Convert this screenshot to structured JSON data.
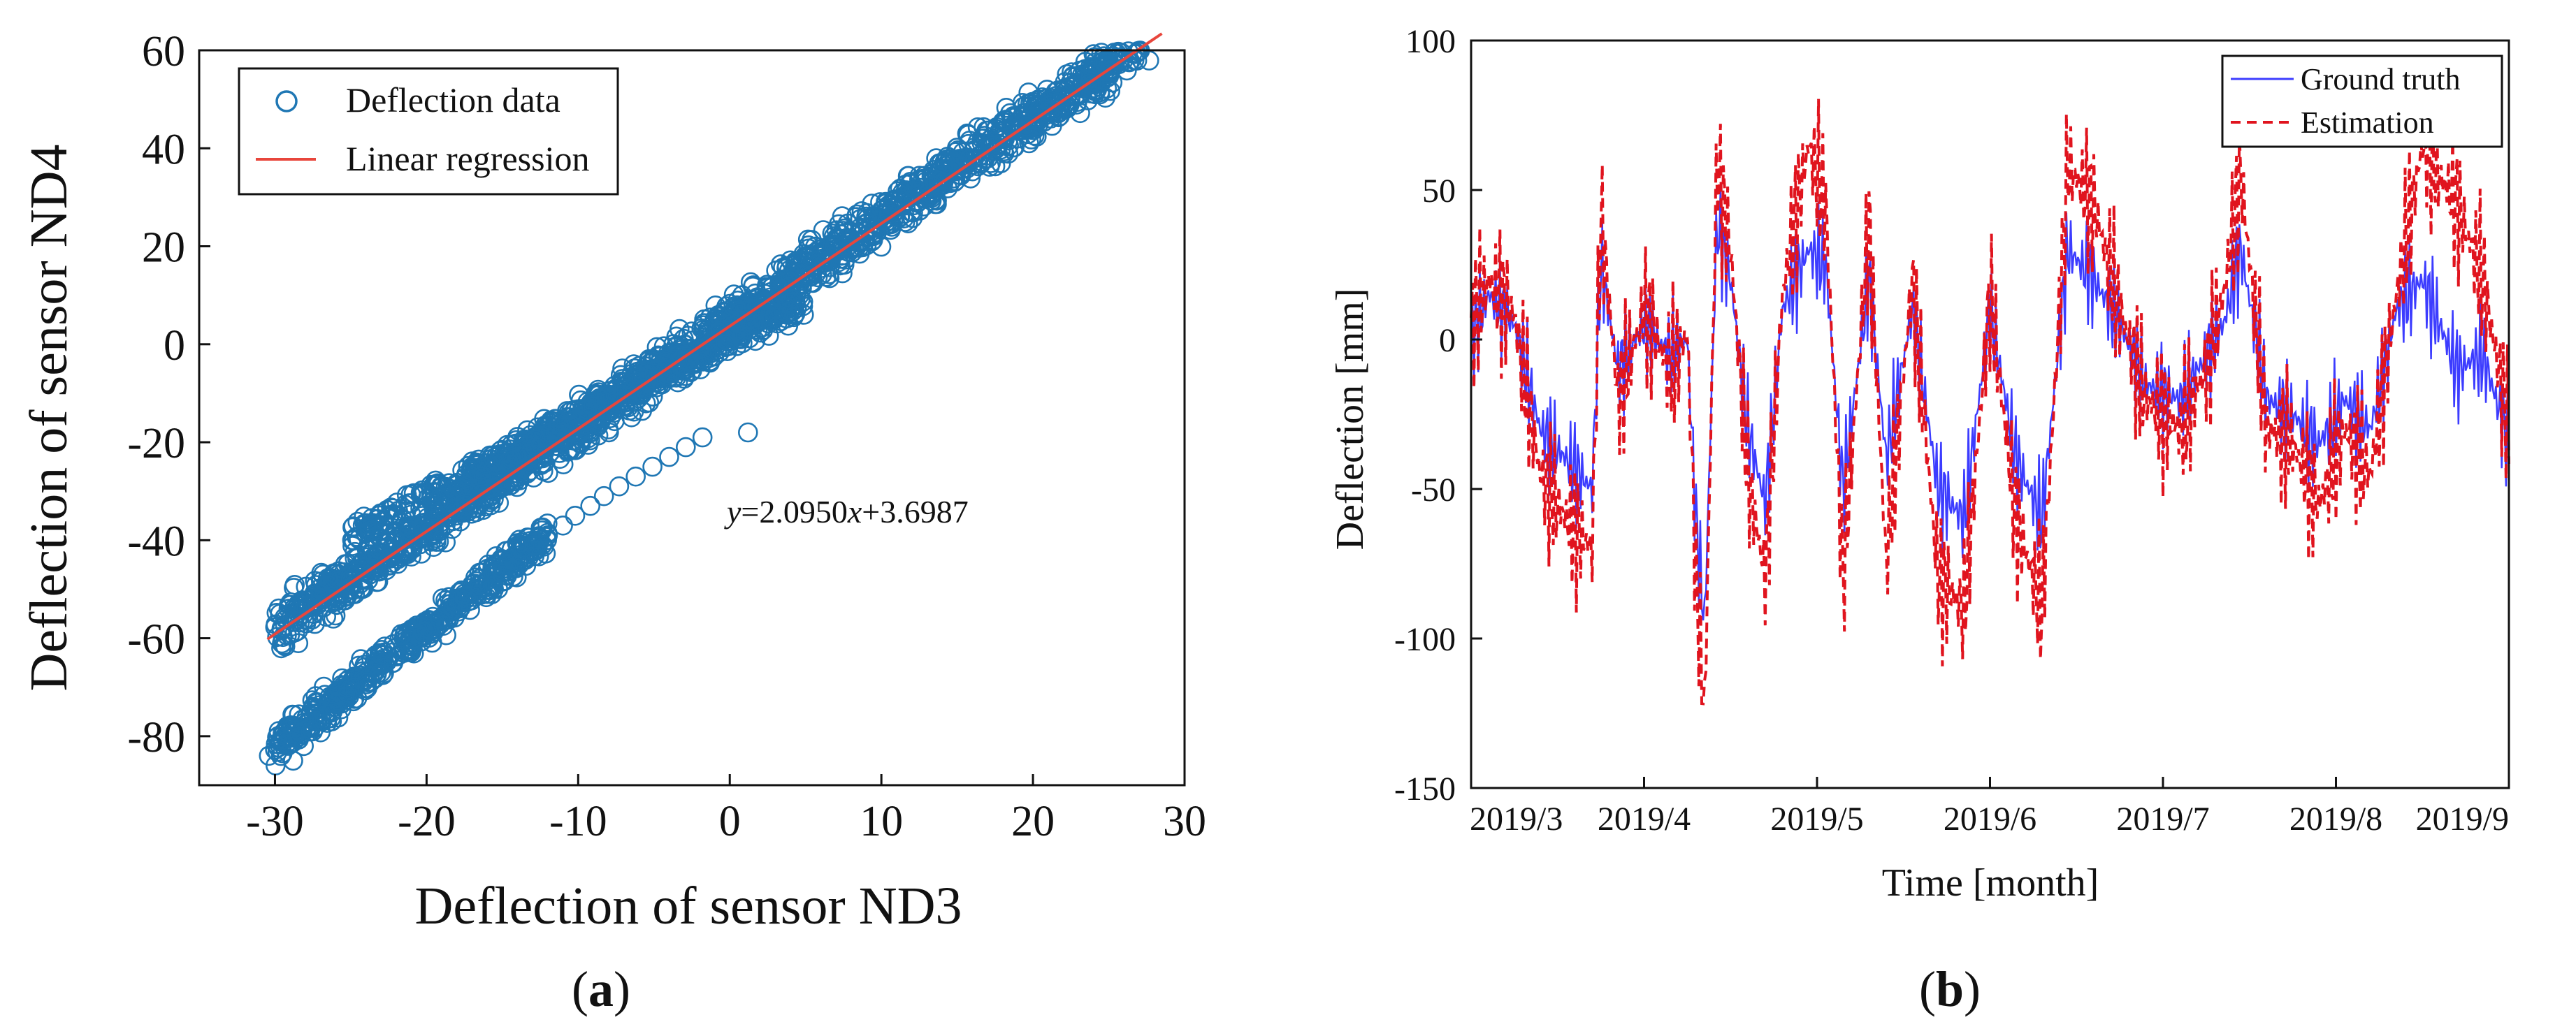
{
  "chart_data": [
    {
      "type": "scatter",
      "panel_label": "a",
      "xlabel": "Deflection of sensor ND3",
      "ylabel": "Deflection of sensor ND4",
      "xlim": [
        -35,
        30
      ],
      "ylim": [
        -90,
        60
      ],
      "xticks": [
        -30,
        -20,
        -10,
        0,
        10,
        20,
        30
      ],
      "yticks": [
        -80,
        -60,
        -40,
        -20,
        0,
        20,
        40,
        60
      ],
      "xtick_labels": [
        "-30",
        "-20",
        "-10",
        "0",
        "10",
        "20",
        "30"
      ],
      "ytick_labels": [
        "-80",
        "-60",
        "-40",
        "-20",
        "0",
        "20",
        "40",
        "60"
      ],
      "grid": false,
      "legend_position": "top-left",
      "legend": {
        "scatter": "Deflection data",
        "line": "Linear regression"
      },
      "colors": {
        "scatter": "#1f77b4",
        "line": "#e8463c"
      },
      "equation_text": "=2.0950",
      "equation_y": "y",
      "equation_x": "x",
      "equation_tail": "+3.6987",
      "regression": {
        "slope": 2.095,
        "intercept": 3.6987,
        "x_range": [
          -30.5,
          28.5
        ]
      },
      "point_clusters": [
        {
          "name": "main band",
          "x_range": [
            -30,
            28.5
          ],
          "slope": 2.095,
          "intercept": 4.5,
          "spread": 7
        },
        {
          "name": "lower branch",
          "x_range": [
            -30,
            -12
          ],
          "slope": 2.4,
          "intercept": -10,
          "spread": 5
        },
        {
          "name": "upper branch",
          "x_range": [
            -25,
            5
          ],
          "slope": 1.6,
          "intercept": 1,
          "spread": 4
        }
      ],
      "series_points": [
        [
          -30.4,
          -84
        ],
        [
          -29.8,
          -80
        ],
        [
          -29.2,
          -78
        ],
        [
          -28.8,
          -85
        ],
        [
          -28.1,
          -82
        ],
        [
          -27.5,
          -79
        ],
        [
          -26.9,
          -77
        ],
        [
          -26.2,
          -75
        ],
        [
          -25.4,
          -72
        ],
        [
          -24.7,
          -70
        ],
        [
          -23.9,
          -69
        ],
        [
          -23.0,
          -67
        ],
        [
          -22.2,
          -65
        ],
        [
          -21.5,
          -63
        ],
        [
          -20.8,
          -60
        ],
        [
          -20.0,
          -58
        ],
        [
          -19.1,
          -56
        ],
        [
          -18.2,
          -54
        ],
        [
          -17.4,
          -52
        ],
        [
          -16.5,
          -49
        ],
        [
          -15.6,
          -47
        ],
        [
          -14.7,
          -45
        ],
        [
          -13.8,
          -43
        ],
        [
          -12.9,
          -41
        ],
        [
          -12.0,
          -39
        ],
        [
          -11.0,
          -37
        ],
        [
          -10.2,
          -35
        ],
        [
          -9.2,
          -33
        ],
        [
          -8.3,
          -31
        ],
        [
          -7.3,
          -29
        ],
        [
          -6.2,
          -27
        ],
        [
          -5.1,
          -25
        ],
        [
          -4.0,
          -23
        ],
        [
          -2.9,
          -21
        ],
        [
          -1.8,
          -19
        ],
        [
          1.2,
          -18
        ],
        [
          -24.7,
          -47
        ],
        [
          -25.0,
          -48
        ],
        [
          -23.2,
          -44
        ],
        [
          -22.0,
          -40
        ],
        [
          -21.1,
          -38
        ],
        [
          -19.5,
          -34
        ],
        [
          -18.0,
          -30
        ],
        [
          -16.4,
          -27
        ],
        [
          -14.6,
          -24
        ],
        [
          -12.8,
          -21
        ],
        [
          -11.1,
          -18
        ],
        [
          -9.3,
          -15
        ],
        [
          -7.4,
          -12
        ],
        [
          -5.6,
          -9
        ],
        [
          -3.9,
          -6
        ],
        [
          -2.1,
          -3
        ],
        [
          -0.3,
          0
        ],
        [
          1.3,
          3
        ],
        [
          3.2,
          6
        ]
      ]
    },
    {
      "type": "line",
      "panel_label": "b",
      "xlabel": "Time [month]",
      "ylabel": "Deflection [mm]",
      "xlim": [
        0,
        6
      ],
      "ylim": [
        -150,
        100
      ],
      "xticks": [
        0,
        1,
        2,
        3,
        4,
        5,
        6
      ],
      "xtick_labels": [
        "2019/3",
        "2019/4",
        "2019/5",
        "2019/6",
        "2019/7",
        "2019/8",
        "2019/9"
      ],
      "yticks": [
        -150,
        -100,
        -50,
        0,
        50,
        100
      ],
      "ytick_labels": [
        "-150",
        "-100",
        "-50",
        "0",
        "50",
        "100"
      ],
      "grid": false,
      "legend_position": "top-right",
      "colors": {
        "ground_truth": "#3c3cff",
        "estimation": "#e0141e"
      },
      "series": [
        {
          "name": "Ground truth",
          "style": "solid",
          "anchors": [
            [
              0,
              0
            ],
            [
              0.1,
              15
            ],
            [
              0.25,
              5
            ],
            [
              0.4,
              -30
            ],
            [
              0.55,
              -40
            ],
            [
              0.7,
              -50
            ],
            [
              0.75,
              25
            ],
            [
              0.85,
              -10
            ],
            [
              1.0,
              5
            ],
            [
              1.15,
              -5
            ],
            [
              1.25,
              0
            ],
            [
              1.3,
              -60
            ],
            [
              1.35,
              -95
            ],
            [
              1.42,
              38
            ],
            [
              1.5,
              20
            ],
            [
              1.6,
              -30
            ],
            [
              1.7,
              -55
            ],
            [
              1.8,
              10
            ],
            [
              1.95,
              30
            ],
            [
              2.05,
              25
            ],
            [
              2.15,
              -50
            ],
            [
              2.3,
              20
            ],
            [
              2.4,
              -40
            ],
            [
              2.55,
              10
            ],
            [
              2.7,
              -50
            ],
            [
              2.85,
              -60
            ],
            [
              3.0,
              10
            ],
            [
              3.15,
              -40
            ],
            [
              3.3,
              -60
            ],
            [
              3.45,
              30
            ],
            [
              3.6,
              20
            ],
            [
              3.75,
              5
            ],
            [
              3.9,
              -15
            ],
            [
              4.1,
              -20
            ],
            [
              4.25,
              -5
            ],
            [
              4.35,
              5
            ],
            [
              4.45,
              30
            ],
            [
              4.6,
              -20
            ],
            [
              4.75,
              -25
            ],
            [
              4.9,
              -35
            ],
            [
              5.05,
              -20
            ],
            [
              5.2,
              -30
            ],
            [
              5.35,
              10
            ],
            [
              5.5,
              20
            ],
            [
              5.7,
              -10
            ],
            [
              5.85,
              -5
            ],
            [
              6.0,
              -35
            ]
          ],
          "oscillation_amplitude": 20
        },
        {
          "name": "Estimation",
          "style": "dashed",
          "anchors": [
            [
              0,
              5
            ],
            [
              0.1,
              20
            ],
            [
              0.25,
              8
            ],
            [
              0.4,
              -45
            ],
            [
              0.55,
              -60
            ],
            [
              0.7,
              -70
            ],
            [
              0.75,
              42
            ],
            [
              0.85,
              -20
            ],
            [
              1.0,
              10
            ],
            [
              1.15,
              -10
            ],
            [
              1.25,
              2
            ],
            [
              1.3,
              -80
            ],
            [
              1.35,
              -125
            ],
            [
              1.42,
              58
            ],
            [
              1.5,
              30
            ],
            [
              1.6,
              -45
            ],
            [
              1.7,
              -80
            ],
            [
              1.8,
              15
            ],
            [
              1.95,
              65
            ],
            [
              2.05,
              45
            ],
            [
              2.15,
              -80
            ],
            [
              2.3,
              40
            ],
            [
              2.4,
              -75
            ],
            [
              2.55,
              20
            ],
            [
              2.7,
              -80
            ],
            [
              2.85,
              -90
            ],
            [
              3.0,
              15
            ],
            [
              3.15,
              -60
            ],
            [
              3.3,
              -90
            ],
            [
              3.45,
              58
            ],
            [
              3.6,
              45
            ],
            [
              3.75,
              10
            ],
            [
              3.9,
              -20
            ],
            [
              4.1,
              -30
            ],
            [
              4.25,
              -10
            ],
            [
              4.35,
              15
            ],
            [
              4.45,
              55
            ],
            [
              4.6,
              -30
            ],
            [
              4.75,
              -35
            ],
            [
              4.9,
              -55
            ],
            [
              5.05,
              -30
            ],
            [
              5.2,
              -45
            ],
            [
              5.35,
              15
            ],
            [
              5.5,
              65
            ],
            [
              5.7,
              45
            ],
            [
              5.85,
              20
            ],
            [
              6.0,
              -30
            ]
          ],
          "oscillation_amplitude": 28
        }
      ]
    }
  ]
}
